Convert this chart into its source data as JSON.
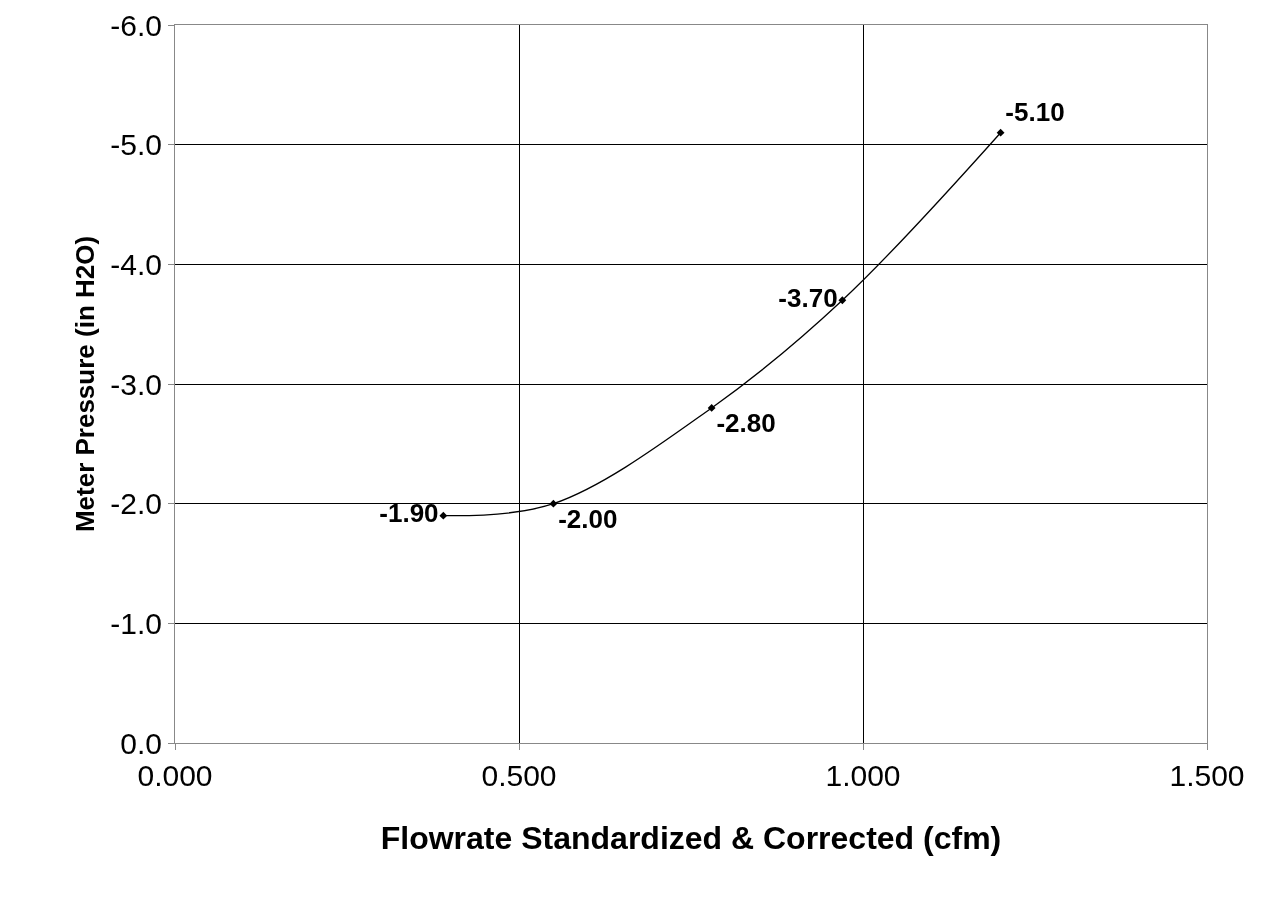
{
  "chart_data": {
    "type": "line",
    "xlabel": "Flowrate Standardized & Corrected (cfm)",
    "ylabel": "Meter Pressure (in H2O)",
    "x": [
      0.39,
      0.55,
      0.78,
      0.97,
      1.2
    ],
    "series": [
      {
        "color": "#000000",
        "values": [
          -1.9,
          -2.0,
          -2.8,
          -3.7,
          -5.1
        ],
        "value_labels": [
          "-1.90",
          "-2.00",
          "-2.80",
          "-3.70",
          "-5.10"
        ]
      }
    ],
    "xlim": [
      0,
      1.5
    ],
    "xticks": [
      {
        "value": 0,
        "label": "0.000"
      },
      {
        "value": 0.5,
        "label": "0.500"
      },
      {
        "value": 1,
        "label": "1.000"
      },
      {
        "value": 1.5,
        "label": "1.500"
      }
    ],
    "ylim": [
      0,
      -6
    ],
    "yticks": [
      {
        "value": 0,
        "label": "0.0"
      },
      {
        "value": -1,
        "label": "-1.0"
      },
      {
        "value": -2,
        "label": "-2.0"
      },
      {
        "value": -3,
        "label": "-3.0"
      },
      {
        "value": -4,
        "label": "-4.0"
      },
      {
        "value": -5,
        "label": "-5.0"
      },
      {
        "value": -6,
        "label": "-6.0"
      }
    ],
    "grid": true,
    "marker": "diamond",
    "line_style": "solid"
  }
}
